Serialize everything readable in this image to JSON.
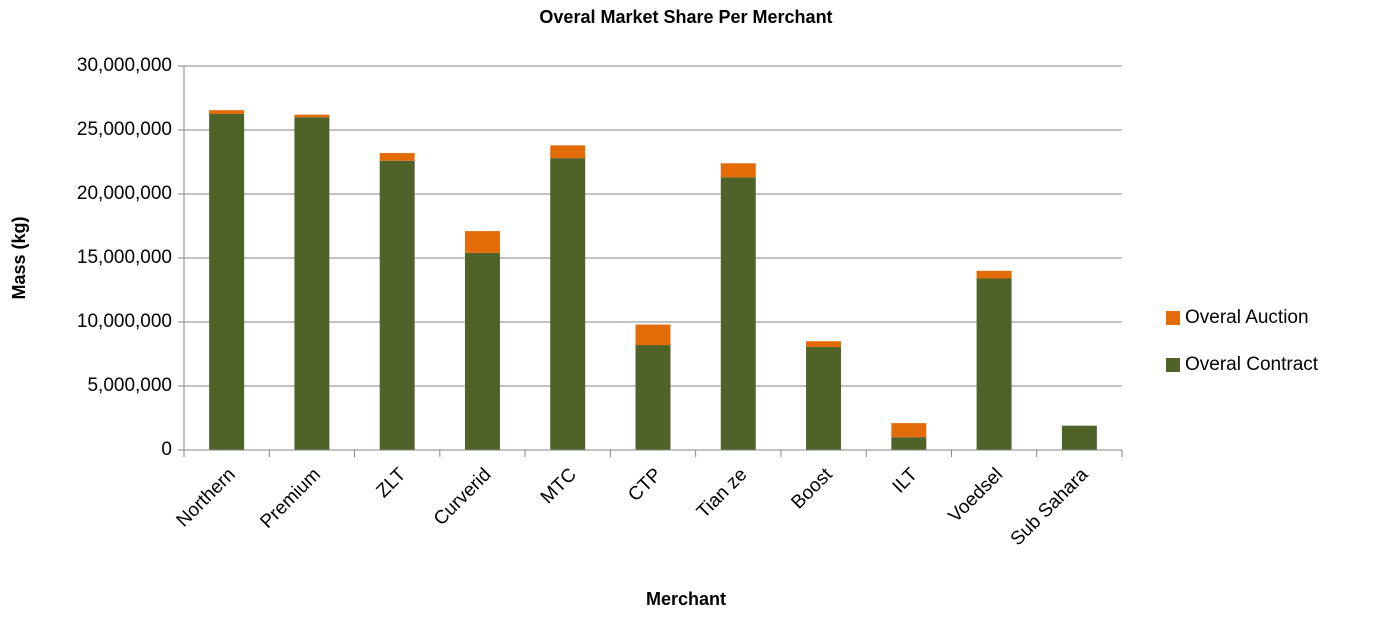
{
  "chart_data": {
    "type": "stacked_bar",
    "title": "Overal Market Share Per Merchant",
    "x_label": "Merchant",
    "y_label": "Mass (kg)",
    "categories": [
      "Northern",
      "Premium",
      "ZLT",
      "Curverid",
      "MTC",
      "CTP",
      "Tian ze",
      "Boost",
      "ILT",
      "Voedsel",
      "Sub Sahara"
    ],
    "series": [
      {
        "name": "Overal Contract",
        "color": "#4f6228",
        "values": [
          26250000,
          26000000,
          22600000,
          15400000,
          22800000,
          8200000,
          21300000,
          8050000,
          1000000,
          13400000,
          1900000
        ]
      },
      {
        "name": "Overal Auction",
        "color": "#e36c09",
        "values": [
          300000,
          200000,
          600000,
          1700000,
          1000000,
          1600000,
          1100000,
          450000,
          1100000,
          600000,
          0
        ]
      }
    ],
    "ylim": [
      0,
      30000000
    ],
    "yticks": [
      0,
      {
        "value": 5000000,
        "label": "5,000,000"
      },
      {
        "value": 10000000,
        "label": "10,000,000"
      },
      {
        "value": 15000000,
        "label": "15,000,000"
      },
      {
        "value": 20000000,
        "label": "20,000,000"
      },
      {
        "value": 25000000,
        "label": "25,000,000"
      },
      {
        "value": 30000000,
        "label": "30,000,000"
      }
    ],
    "grid": true,
    "legend": "right"
  }
}
